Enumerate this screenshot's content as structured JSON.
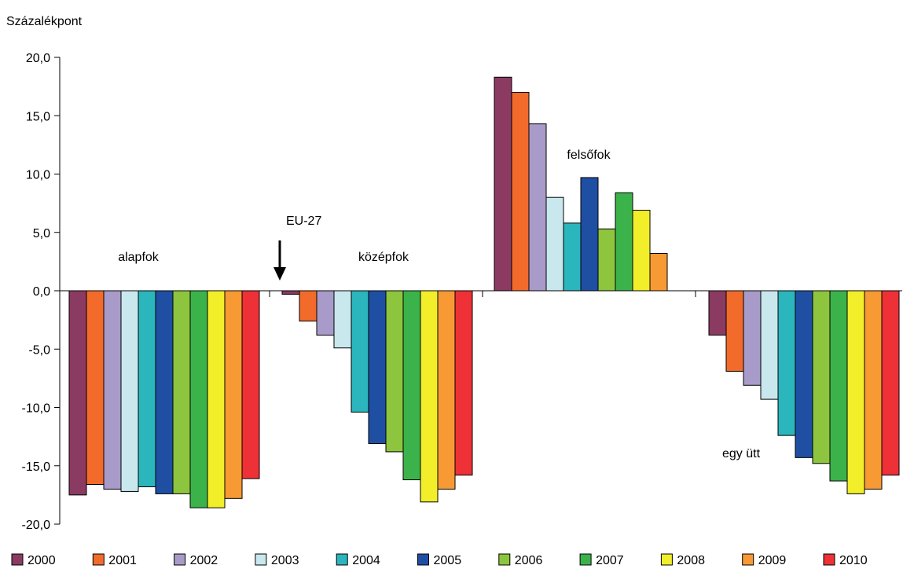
{
  "chart_data": {
    "type": "bar",
    "ylabel": "Százalékpont",
    "ylim": [
      -20,
      20
    ],
    "yticks": [
      "20,0",
      "15,0",
      "10,0",
      "5,0",
      "0,0",
      "-5,0",
      "-10,0",
      "-15,0",
      "-20,0"
    ],
    "ytick_values": [
      20,
      15,
      10,
      5,
      0,
      -5,
      -10,
      -15,
      -20
    ],
    "grid": false,
    "legend_position": "bottom",
    "categories": [
      "alapfok",
      "középfok",
      "felsőfok",
      "egy ütt"
    ],
    "annotation": {
      "text": "EU-27",
      "arrow": "down"
    },
    "series": [
      {
        "name": "2000",
        "color": "#8B3A62",
        "values": [
          -17.5,
          -0.3,
          18.3,
          -3.8
        ]
      },
      {
        "name": "2001",
        "color": "#F26B2A",
        "values": [
          -16.6,
          -2.6,
          17.0,
          -6.9
        ]
      },
      {
        "name": "2002",
        "color": "#A89BC9",
        "values": [
          -17.0,
          -3.8,
          14.3,
          -8.1
        ]
      },
      {
        "name": "2003",
        "color": "#C8E8EE",
        "values": [
          -17.2,
          -4.9,
          8.0,
          -9.3
        ]
      },
      {
        "name": "2004",
        "color": "#2BB5BC",
        "values": [
          -16.8,
          -10.4,
          5.8,
          -12.4
        ]
      },
      {
        "name": "2005",
        "color": "#1F4FA3",
        "values": [
          -17.4,
          -13.1,
          9.7,
          -14.3
        ]
      },
      {
        "name": "2006",
        "color": "#8DC53E",
        "values": [
          -17.4,
          -13.8,
          5.3,
          -14.8
        ]
      },
      {
        "name": "2007",
        "color": "#3BB34A",
        "values": [
          -18.6,
          -16.2,
          8.4,
          -16.3
        ]
      },
      {
        "name": "2008",
        "color": "#F2EE2A",
        "values": [
          -18.6,
          -18.1,
          6.9,
          -17.4
        ]
      },
      {
        "name": "2009",
        "color": "#F79A33",
        "values": [
          -17.8,
          -17.0,
          3.2,
          -17.0
        ]
      },
      {
        "name": "2010",
        "color": "#EE3136",
        "values": [
          -16.1,
          -15.8,
          null,
          -15.8
        ]
      }
    ]
  }
}
